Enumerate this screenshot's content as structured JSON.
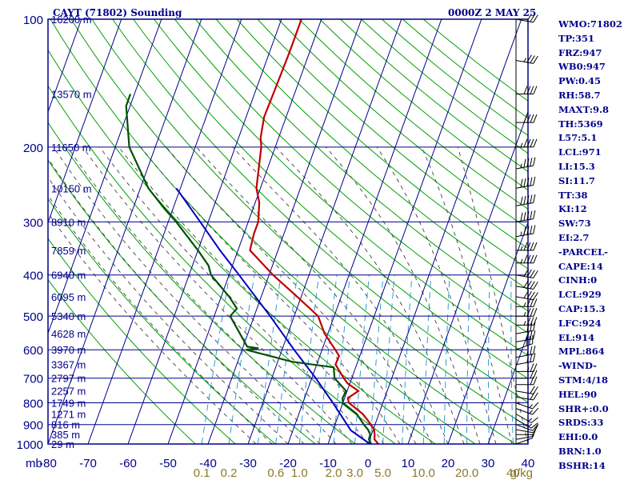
{
  "header": {
    "station": "CAYT (71802) Sounding",
    "time": "0000Z  2 MAY 25"
  },
  "chart_data": {
    "type": "skew-t",
    "title": "CAYT (71802) Sounding",
    "pressure_levels": [
      100,
      200,
      300,
      400,
      500,
      600,
      700,
      800,
      900,
      1000
    ],
    "pressure_tick_labels": [
      "100",
      "200",
      "300",
      "400",
      "500",
      "600",
      "700",
      "800",
      "900",
      "1000"
    ],
    "pressure_unit": "mb",
    "temperature_ticks": [
      -80,
      -70,
      -60,
      -50,
      -40,
      -30,
      -20,
      -10,
      0,
      10,
      20,
      30,
      40
    ],
    "temperature_tick_labels": [
      "-80",
      "-70",
      "-60",
      "-50",
      "-40",
      "-30",
      "-20",
      "-10",
      "0",
      "10",
      "20",
      "30",
      "40"
    ],
    "mixing_ratio_labels": [
      {
        "value": 0.1,
        "text": "0.1"
      },
      {
        "value": 0.2,
        "text": "0.2"
      },
      {
        "value": 0.6,
        "text": "0.6"
      },
      {
        "value": 1.0,
        "text": "1.0"
      },
      {
        "value": 2.0,
        "text": "2.0"
      },
      {
        "value": 3.0,
        "text": "3.0"
      },
      {
        "value": 5.0,
        "text": "5.0"
      },
      {
        "value": 10.0,
        "text": "10.0"
      },
      {
        "value": 20.0,
        "text": "20.0"
      },
      {
        "value": 40.0,
        "text": "40"
      }
    ],
    "mixing_ratio_unit": "g/kg",
    "height_labels": [
      {
        "p": 100,
        "text": "16200 m"
      },
      {
        "p": 150,
        "text": "13570 m"
      },
      {
        "p": 200,
        "text": "11650 m"
      },
      {
        "p": 250,
        "text": "10150 m"
      },
      {
        "p": 300,
        "text": "8910 m"
      },
      {
        "p": 350,
        "text": "7859 m"
      },
      {
        "p": 400,
        "text": "6940 m"
      },
      {
        "p": 450,
        "text": "6095 m"
      },
      {
        "p": 500,
        "text": "5340 m"
      },
      {
        "p": 550,
        "text": "4628 m"
      },
      {
        "p": 600,
        "text": "3970 m"
      },
      {
        "p": 650,
        "text": "3367 m"
      },
      {
        "p": 700,
        "text": "2797 m"
      },
      {
        "p": 750,
        "text": "2257 m"
      },
      {
        "p": 800,
        "text": "1749 m"
      },
      {
        "p": 850,
        "text": "1271 m"
      },
      {
        "p": 900,
        "text": "816 m"
      },
      {
        "p": 950,
        "text": "385 m"
      },
      {
        "p": 1000,
        "text": "29 m"
      }
    ],
    "temperature_profile": [
      [
        1000,
        2.6
      ],
      [
        975,
        1.2
      ],
      [
        950,
        0.8
      ],
      [
        925,
        0.2
      ],
      [
        900,
        -1.0
      ],
      [
        850,
        -4.0
      ],
      [
        800,
        -8.5
      ],
      [
        780,
        -9.2
      ],
      [
        750,
        -7.2
      ],
      [
        720,
        -10.6
      ],
      [
        700,
        -12.0
      ],
      [
        650,
        -15.3
      ],
      [
        620,
        -15.2
      ],
      [
        600,
        -16.7
      ],
      [
        550,
        -20.8
      ],
      [
        500,
        -24.0
      ],
      [
        450,
        -31.0
      ],
      [
        400,
        -39.0
      ],
      [
        350,
        -47.0
      ],
      [
        320,
        -47.5
      ],
      [
        300,
        -47.5
      ],
      [
        270,
        -49.0
      ],
      [
        250,
        -51.0
      ],
      [
        200,
        -53.5
      ],
      [
        190,
        -54.5
      ],
      [
        170,
        -55.5
      ],
      [
        150,
        -55.3
      ],
      [
        120,
        -55.0
      ],
      [
        100,
        -55.0
      ]
    ],
    "dewpoint_profile": [
      [
        1000,
        0.8
      ],
      [
        975,
        -0.2
      ],
      [
        950,
        -0.3
      ],
      [
        925,
        -1.3
      ],
      [
        900,
        -2.8
      ],
      [
        850,
        -5.5
      ],
      [
        800,
        -10.0
      ],
      [
        780,
        -10.5
      ],
      [
        750,
        -10.3
      ],
      [
        700,
        -14.3
      ],
      [
        660,
        -15.5
      ],
      [
        640,
        -26.5
      ],
      [
        600,
        -39.0
      ],
      [
        595,
        -36.0
      ],
      [
        590,
        -39.0
      ],
      [
        500,
        -46.0
      ],
      [
        480,
        -45.0
      ],
      [
        450,
        -48.0
      ],
      [
        400,
        -54.5
      ],
      [
        380,
        -56.0
      ],
      [
        350,
        -60.0
      ],
      [
        300,
        -68.0
      ],
      [
        280,
        -72.0
      ],
      [
        250,
        -78.0
      ],
      [
        200,
        -86.5
      ],
      [
        160,
        -91.0
      ],
      [
        150,
        -91.0
      ]
    ],
    "parcel_profile": [
      [
        1000,
        0.5
      ],
      [
        929,
        -5.5
      ],
      [
        900,
        -7.0
      ],
      [
        800,
        -12.5
      ],
      [
        700,
        -19.0
      ],
      [
        600,
        -27.0
      ],
      [
        500,
        -36.0
      ],
      [
        400,
        -47.5
      ],
      [
        350,
        -54.5
      ],
      [
        300,
        -62.0
      ],
      [
        250,
        -71.0
      ]
    ],
    "xlim": [
      -80,
      40
    ],
    "ylim": [
      100,
      1000
    ],
    "grid": true
  },
  "indices": [
    "WMO:71802",
    "TP:351",
    "FRZ:947",
    "WB0:947",
    "PW:0.45",
    "RH:58.7",
    "MAXT:9.8",
    "TH:5369",
    "L57:5.1",
    "LCL:971",
    "LI:15.3",
    "SI:11.7",
    "TT:38",
    "KI:12",
    "SW:73",
    "EI:2.7",
    "-PARCEL-",
    "CAPE:14",
    "CINH:0",
    "LCL:929",
    "CAP:15.3",
    "LFC:924",
    "EL:914",
    "MPL:864",
    "-WIND-",
    "STM:4/18",
    "HEL:90",
    "SHR+:0.0",
    "SRDS:33",
    "EHI:0.0",
    "BRN:1.0",
    "BSHR:14"
  ],
  "wind_barbs": [
    [
      1000,
      250,
      5
    ],
    [
      975,
      260,
      5
    ],
    [
      950,
      270,
      10
    ],
    [
      925,
      280,
      10
    ],
    [
      900,
      290,
      10
    ],
    [
      875,
      300,
      15
    ],
    [
      850,
      300,
      15
    ],
    [
      825,
      290,
      15
    ],
    [
      800,
      290,
      15
    ],
    [
      775,
      280,
      20
    ],
    [
      750,
      280,
      20
    ],
    [
      725,
      270,
      20
    ],
    [
      700,
      270,
      20
    ],
    [
      675,
      270,
      25
    ],
    [
      650,
      260,
      25
    ],
    [
      625,
      260,
      25
    ],
    [
      600,
      250,
      30
    ],
    [
      575,
      260,
      30
    ],
    [
      550,
      260,
      30
    ],
    [
      525,
      270,
      35
    ],
    [
      500,
      270,
      35
    ],
    [
      475,
      270,
      35
    ],
    [
      450,
      280,
      40
    ],
    [
      425,
      280,
      40
    ],
    [
      400,
      280,
      40
    ],
    [
      375,
      270,
      45
    ],
    [
      350,
      270,
      45
    ],
    [
      325,
      260,
      45
    ],
    [
      300,
      260,
      50
    ],
    [
      275,
      260,
      50
    ],
    [
      250,
      260,
      50
    ],
    [
      225,
      260,
      45
    ],
    [
      200,
      270,
      45
    ],
    [
      175,
      270,
      40
    ],
    [
      150,
      270,
      40
    ],
    [
      125,
      280,
      35
    ],
    [
      100,
      280,
      30
    ]
  ],
  "colors": {
    "background": "#ffffff",
    "frame": "#00008b",
    "isotherm": "#00008b",
    "dry_adiabat": "#00a000",
    "moist_adiabat": "#404040",
    "mixing_ratio": "#1a8fd0",
    "temperature": "#c00000",
    "dewpoint": "#005000",
    "parcel": "#0000c0",
    "wind_barb": "#000000",
    "mix_label": "#8a7a2a"
  }
}
